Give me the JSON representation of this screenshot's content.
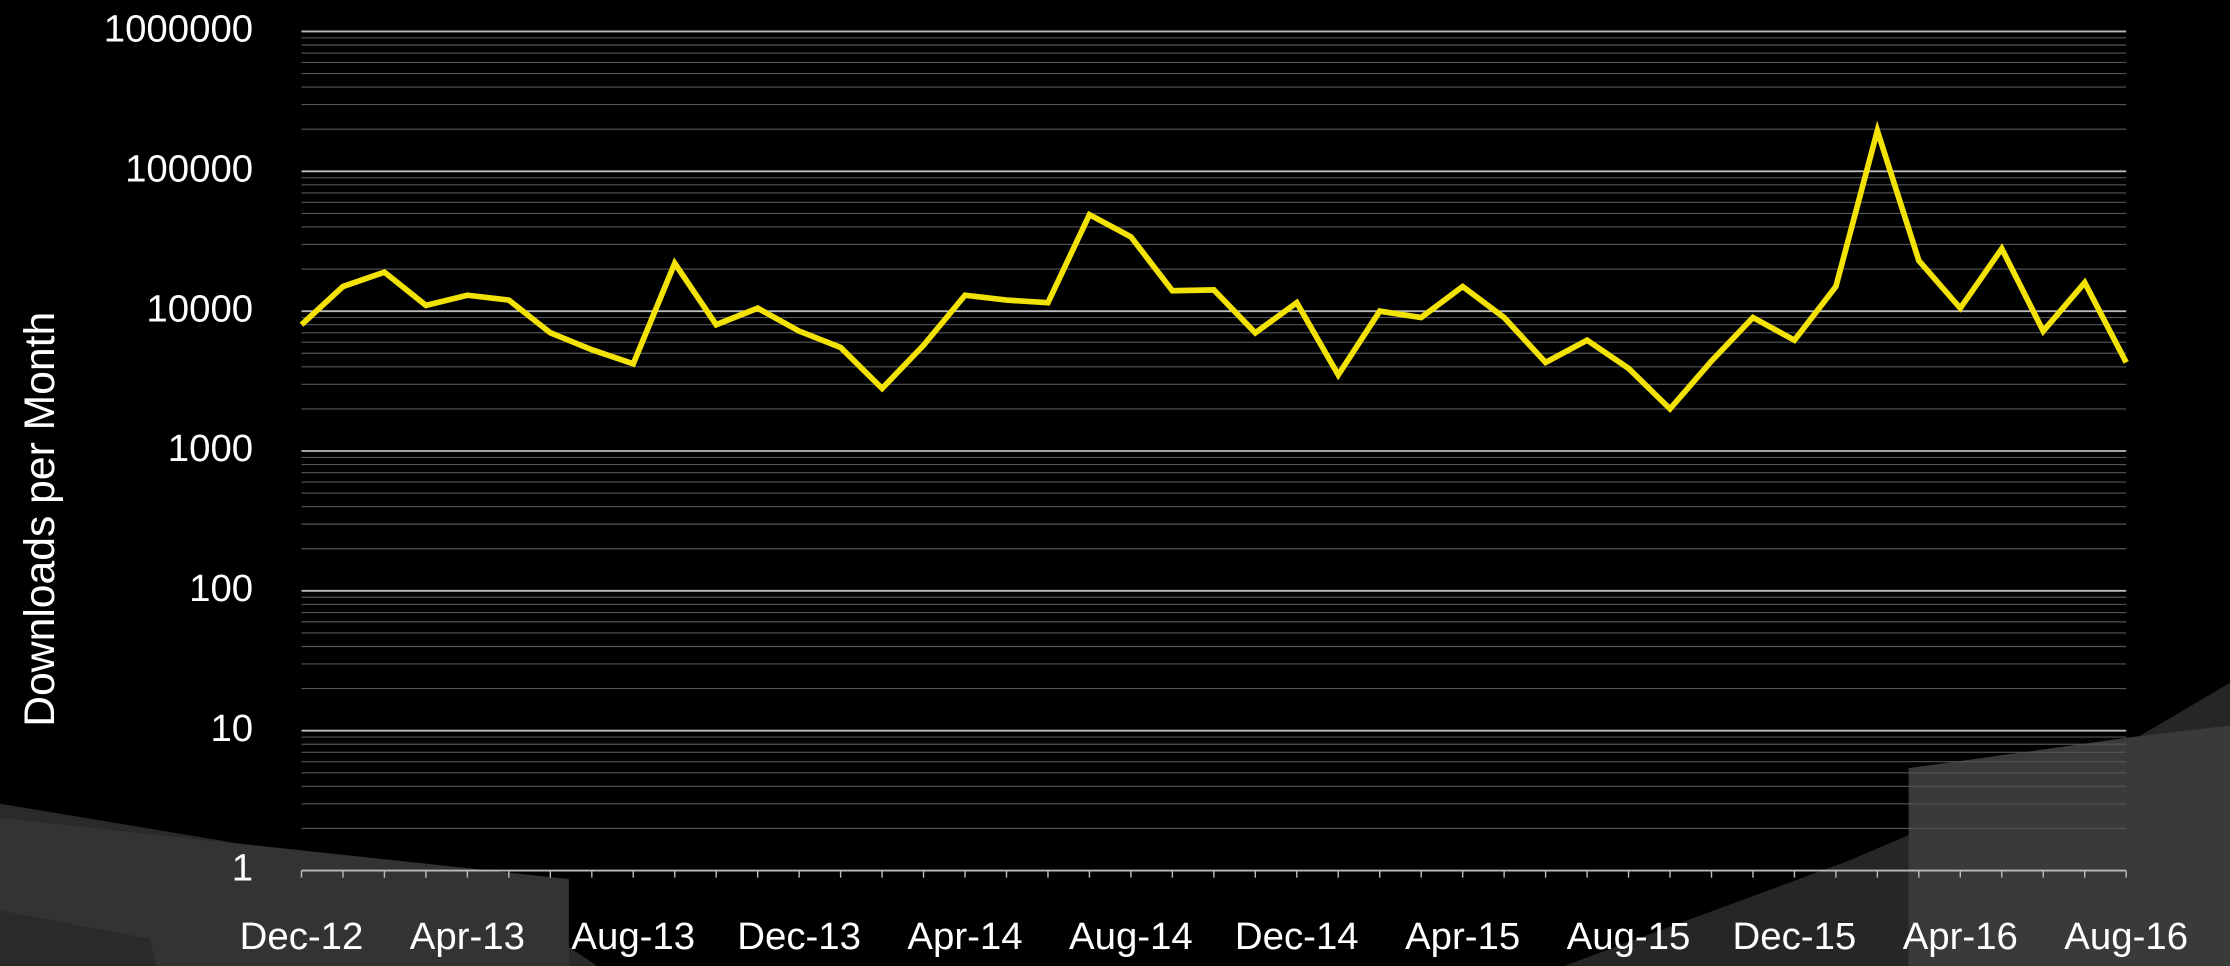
{
  "chart_data": {
    "type": "line",
    "y_label": "Downloads per Month",
    "categories": [
      "Dec-12",
      null,
      null,
      null,
      "Apr-13",
      null,
      null,
      null,
      "Aug-13",
      null,
      null,
      null,
      "Dec-13",
      null,
      null,
      null,
      "Apr-14",
      null,
      null,
      null,
      "Aug-14",
      null,
      null,
      null,
      "Dec-14",
      null,
      null,
      null,
      "Apr-15",
      null,
      null,
      null,
      "Aug-15",
      null,
      null,
      null,
      "Dec-15",
      null,
      null,
      null,
      "Apr-16",
      null,
      null,
      null,
      "Aug-16"
    ],
    "series": [
      {
        "name": "Downloads",
        "color": "#f2e205",
        "values": [
          8000,
          15000,
          19000,
          11000,
          13000,
          12000,
          7000,
          5300,
          4200,
          22000,
          8000,
          10500,
          7200,
          5500,
          2800,
          5700,
          13000,
          12000,
          11500,
          49000,
          34000,
          14000,
          14200,
          7000,
          11500,
          3500,
          10000,
          9000,
          15000,
          9000,
          4300,
          6200,
          3900,
          2000,
          4400,
          9000,
          6200,
          15000,
          195000,
          23000,
          10500,
          28000,
          7200,
          16000,
          4300
        ]
      }
    ],
    "log_scale": true,
    "ylim": [
      1,
      1000000
    ],
    "yticks": [
      1,
      10,
      100,
      1000,
      10000,
      100000,
      1000000
    ],
    "grid": true,
    "minor_grid": true
  }
}
